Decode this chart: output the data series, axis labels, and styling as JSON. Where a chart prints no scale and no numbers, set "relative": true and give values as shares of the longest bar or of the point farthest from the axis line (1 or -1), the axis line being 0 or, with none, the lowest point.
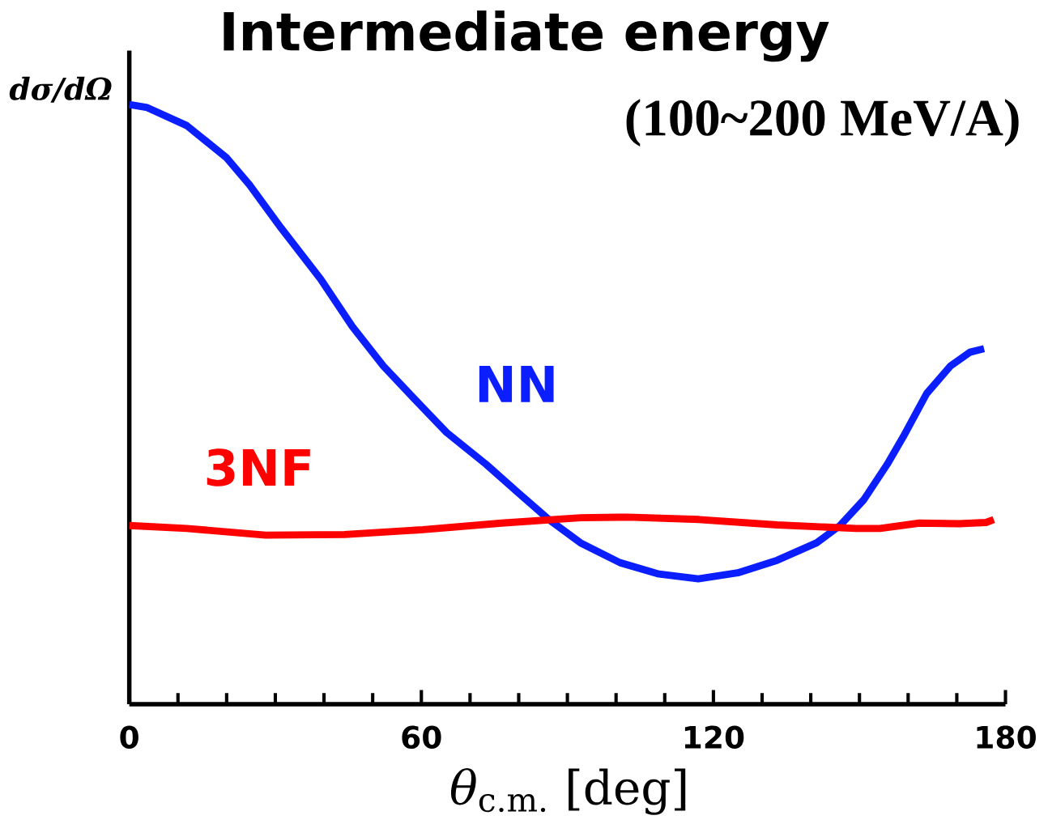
{
  "chart_data": {
    "type": "line",
    "title": "Intermediate energy",
    "subtitle": "(100~200 MeV/A)",
    "xlabel": "*θ*$_{c.m.}$ [deg]",
    "ylabel": "dσ/dΩ",
    "relative": true,
    "xlim": [
      0,
      180
    ],
    "xticks": [
      0,
      {
        "value": 10,
        "label": null
      },
      {
        "value": 20,
        "label": null
      },
      {
        "value": 30,
        "label": null
      },
      {
        "value": 40,
        "label": null
      },
      {
        "value": 50,
        "label": null
      },
      60,
      {
        "value": 70,
        "label": null
      },
      {
        "value": 80,
        "label": null
      },
      {
        "value": 90,
        "label": null
      },
      {
        "value": 100,
        "label": null
      },
      {
        "value": 110,
        "label": null
      },
      120,
      {
        "value": 130,
        "label": null
      },
      {
        "value": 140,
        "label": null
      },
      {
        "value": 150,
        "label": null
      },
      {
        "value": 160,
        "label": null
      },
      {
        "value": 170,
        "label": null
      },
      180
    ],
    "series": [
      {
        "name": "NN",
        "color": "#0a1eff",
        "x": [
          0,
          3.7,
          11.8,
          19.9,
          24.7,
          31.2,
          39.3,
          45.8,
          52.2,
          58.7,
          65.2,
          73.3,
          79.7,
          86.2,
          92.7,
          100.8,
          108.8,
          116.9,
          125.0,
          133.1,
          141.2,
          146.0,
          150.9,
          155.7,
          159.0,
          163.8,
          168.7,
          172.7,
          175.6
        ],
        "values": [
          1.0,
          0.995,
          0.965,
          0.912,
          0.866,
          0.794,
          0.709,
          0.63,
          0.564,
          0.508,
          0.453,
          0.4,
          0.354,
          0.308,
          0.269,
          0.236,
          0.217,
          0.209,
          0.219,
          0.24,
          0.269,
          0.298,
          0.341,
          0.4,
          0.446,
          0.518,
          0.564,
          0.587,
          0.593
        ]
      },
      {
        "name": "3NF",
        "color": "#ff0000",
        "x": [
          0,
          11.8,
          28.0,
          44.2,
          60.3,
          76.5,
          92.7,
          102.4,
          117.0,
          133.1,
          149.3,
          154.2,
          162.3,
          170.4,
          176.0,
          177.6
        ],
        "values": [
          0.298,
          0.293,
          0.282,
          0.283,
          0.291,
          0.302,
          0.311,
          0.312,
          0.308,
          0.299,
          0.293,
          0.293,
          0.302,
          0.301,
          0.303,
          0.308
        ]
      }
    ]
  }
}
